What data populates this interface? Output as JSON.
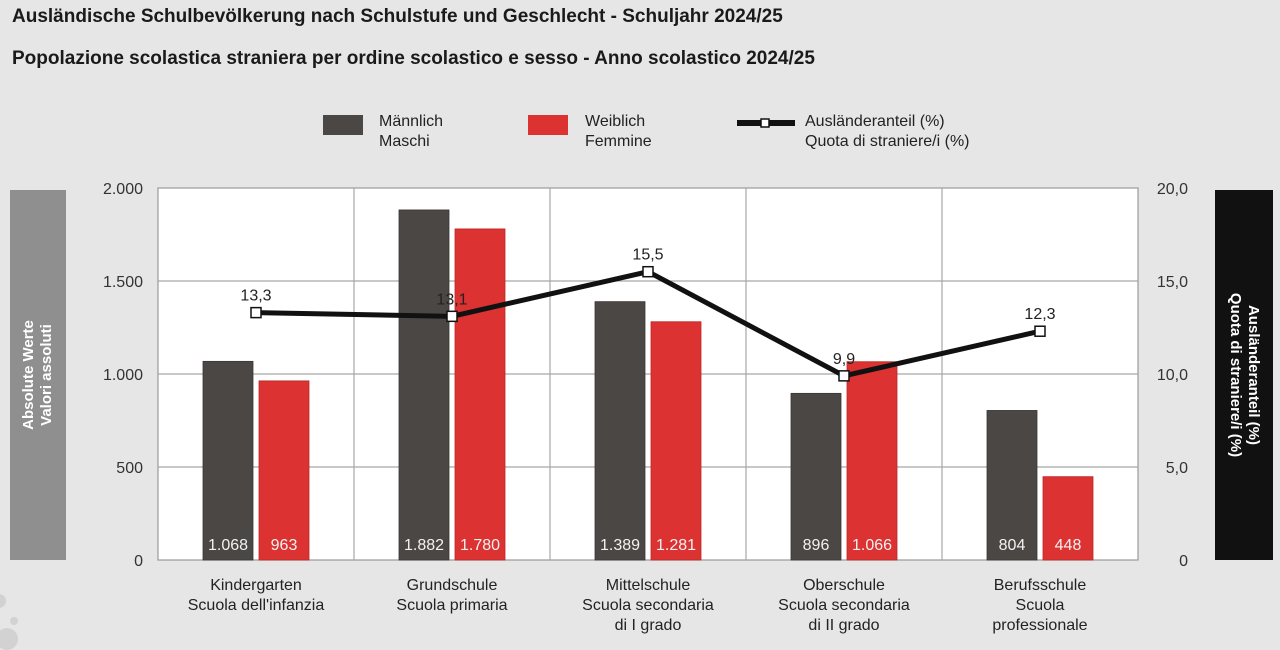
{
  "title_de": "Ausländische Schulbevölkerung nach Schulstufe und Geschlecht - Schuljahr 2024/25",
  "title_it": "Popolazione scolastica straniera per ordine scolastico e sesso - Anno scolastico 2024/25",
  "legend": {
    "male": {
      "de": "Männlich",
      "it": "Maschi",
      "color": "#4b4745"
    },
    "female": {
      "de": "Weiblich",
      "it": "Femmine",
      "color": "#dc3232"
    },
    "share": {
      "de": "Ausländeranteil (%)",
      "it": "Quota di straniere/i (%)",
      "color": "#111111"
    }
  },
  "axis_left": {
    "de": "Absolute Werte",
    "it": "Valori assoluti"
  },
  "axis_right": {
    "de": "Ausländeranteil (%)",
    "it": "Quota di straniere/i (%)"
  },
  "chart_data": {
    "type": "bar",
    "title": "Ausländische Schulbevölkerung nach Schulstufe und Geschlecht - Schuljahr 2024/25",
    "subtitle": "Popolazione scolastica straniera per ordine scolastico e sesso - Anno scolastico 2024/25",
    "categories": [
      [
        "Kindergarten",
        "Scuola dell'infanzia"
      ],
      [
        "Grundschule",
        "Scuola primaria"
      ],
      [
        "Mittelschule",
        "Scuola secondaria",
        "di I grado"
      ],
      [
        "Oberschule",
        "Scuola secondaria",
        "di II grado"
      ],
      [
        "Berufsschule",
        "Scuola",
        "professionale"
      ]
    ],
    "series": [
      {
        "name": "Männlich / Maschi",
        "type": "bar",
        "axis": "left",
        "color": "#4b4745",
        "values": [
          1068,
          1882,
          1389,
          896,
          804
        ],
        "labels": [
          "1.068",
          "1.882",
          "1.389",
          "896",
          "804"
        ]
      },
      {
        "name": "Weiblich / Femmine",
        "type": "bar",
        "axis": "left",
        "color": "#dc3232",
        "values": [
          963,
          1780,
          1281,
          1066,
          448
        ],
        "labels": [
          "963",
          "1.780",
          "1.281",
          "1.066",
          "448"
        ]
      },
      {
        "name": "Ausländeranteil (%) / Quota di straniere/i (%)",
        "type": "line",
        "axis": "right",
        "color": "#111111",
        "values": [
          13.3,
          13.1,
          15.5,
          9.9,
          12.3
        ],
        "labels": [
          "13,3",
          "13,1",
          "15,5",
          "9,9",
          "12,3"
        ]
      }
    ],
    "ylabel": "Absolute Werte / Valori assoluti",
    "ylim": [
      0,
      2000
    ],
    "yticks": [
      0,
      500,
      1000,
      1500,
      2000
    ],
    "ytick_labels": [
      "0",
      "500",
      "1.000",
      "1.500",
      "2.000"
    ],
    "y2label": "Ausländeranteil (%) / Quota di straniere/i (%)",
    "y2lim": [
      0,
      20
    ],
    "y2ticks": [
      0,
      5,
      10,
      15,
      20
    ],
    "y2tick_labels": [
      "0",
      "5,0",
      "10,0",
      "15,0",
      "20,0"
    ],
    "grid": true,
    "legend_position": "top-center"
  }
}
